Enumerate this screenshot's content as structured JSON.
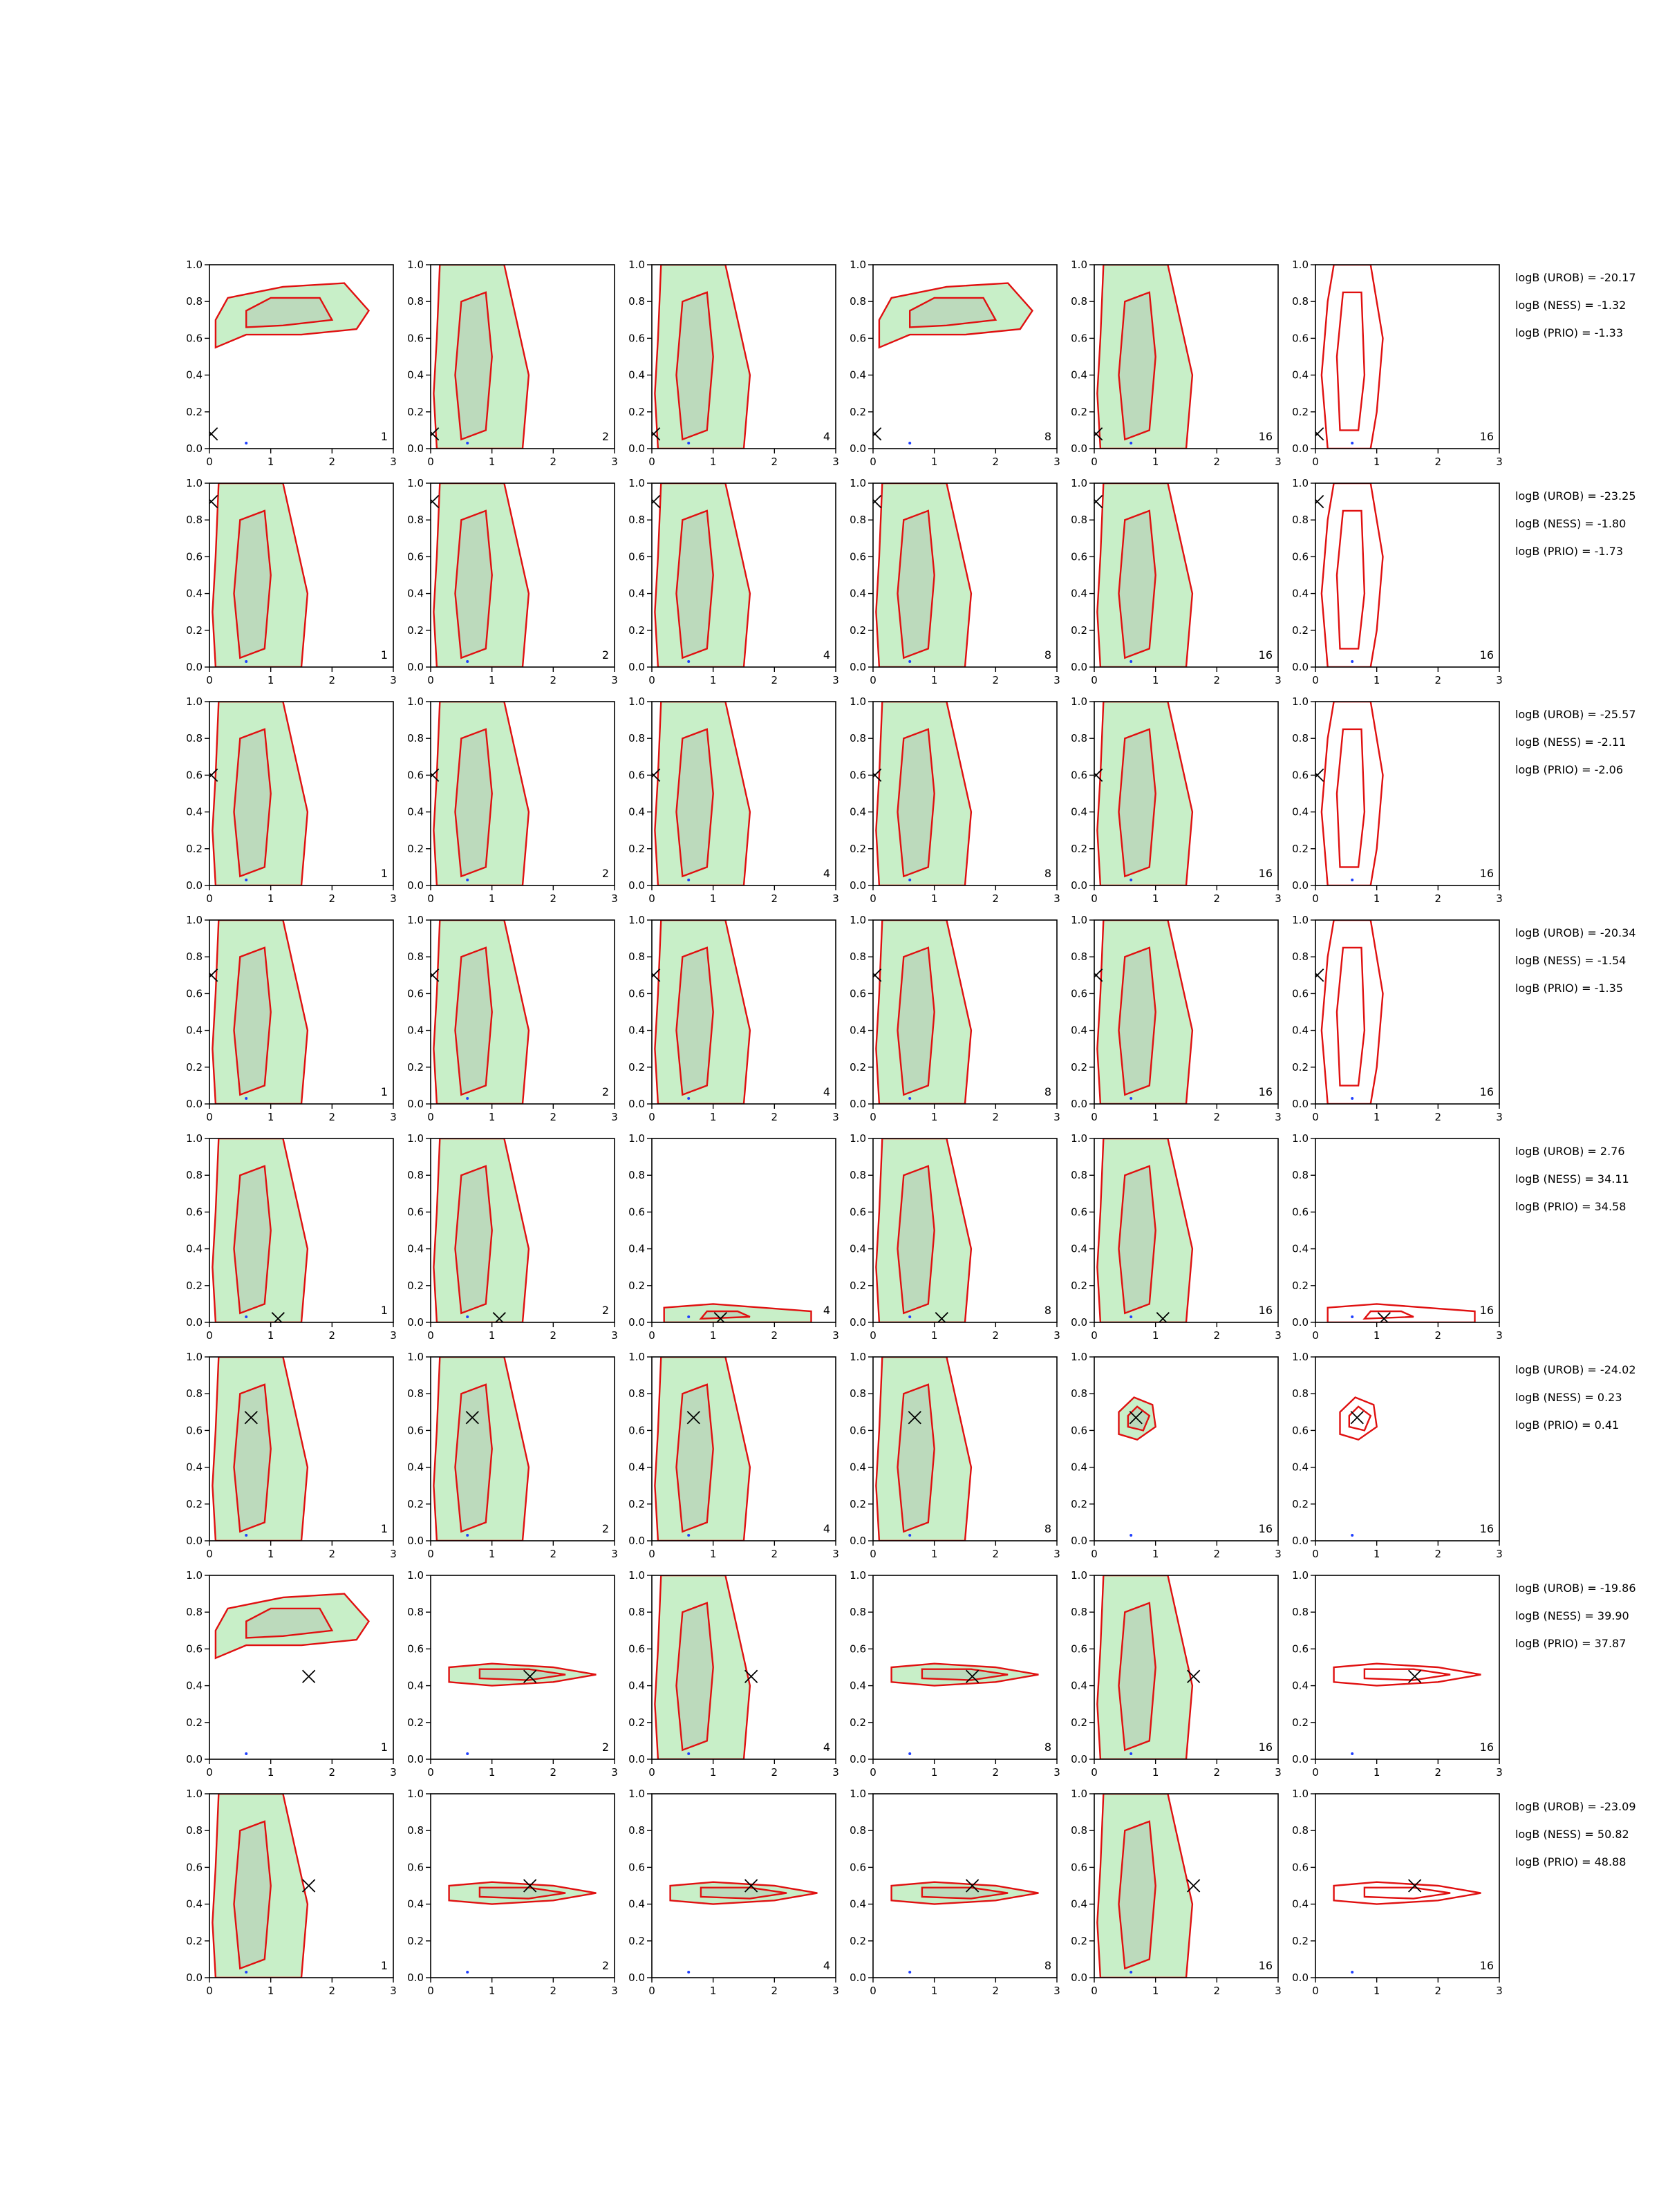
{
  "colors": {
    "outer_fill": "#c8efc8",
    "inner_fill": "#b6d2b6",
    "contour": "#e01010",
    "true_marker": "#000000",
    "dot": "#1f3fff"
  },
  "chart_data": {
    "type": "contour-grid",
    "title": "",
    "xlabel": "",
    "ylabel": "",
    "xlim": [
      0,
      3
    ],
    "ylim": [
      0,
      1
    ],
    "x_ticks": [
      "0",
      "1",
      "2",
      "3"
    ],
    "y_ticks": [
      "0.0",
      "0.2",
      "0.4",
      "0.6",
      "0.8",
      "1.0"
    ],
    "column_labels": [
      "1",
      "2",
      "4",
      "8",
      "16",
      "16"
    ],
    "grid": false,
    "rows": [
      {
        "marker": {
          "x": 0.03,
          "y": 0.08
        },
        "stats": [
          "logB (UROB) = -20.17",
          "logB (NESS) = -1.32",
          "logB (PRIO) = -1.33"
        ]
      },
      {
        "marker": {
          "x": 0.03,
          "y": 0.9
        },
        "stats": [
          "logB (UROB) = -23.25",
          "logB (NESS) = -1.80",
          "logB (PRIO) = -1.73"
        ]
      },
      {
        "marker": {
          "x": 0.03,
          "y": 0.6
        },
        "stats": [
          "logB (UROB) = -25.57",
          "logB (NESS) = -2.11",
          "logB (PRIO) = -2.06"
        ]
      },
      {
        "marker": {
          "x": 0.03,
          "y": 0.7
        },
        "stats": [
          "logB (UROB) = -20.34",
          "logB (NESS) = -1.54",
          "logB (PRIO) = -1.35"
        ]
      },
      {
        "marker": {
          "x": 1.12,
          "y": 0.02
        },
        "stats": [
          "logB (UROB) = 2.76",
          "logB (NESS) = 34.11",
          "logB (PRIO) = 34.58"
        ]
      },
      {
        "marker": {
          "x": 0.68,
          "y": 0.67
        },
        "stats": [
          "logB (UROB) = -24.02",
          "logB (NESS) = 0.23",
          "logB (PRIO) = 0.41"
        ]
      },
      {
        "marker": {
          "x": 1.62,
          "y": 0.45
        },
        "stats": [
          "logB (UROB) = -19.86",
          "logB (NESS) = 39.90",
          "logB (PRIO) = 37.87"
        ]
      },
      {
        "marker": {
          "x": 1.62,
          "y": 0.5
        },
        "stats": [
          "logB (UROB) = -23.09",
          "logB (NESS) = 50.82",
          "logB (PRIO) = 48.88"
        ]
      }
    ],
    "dot": {
      "x": 0.6,
      "y": 0.03
    }
  }
}
